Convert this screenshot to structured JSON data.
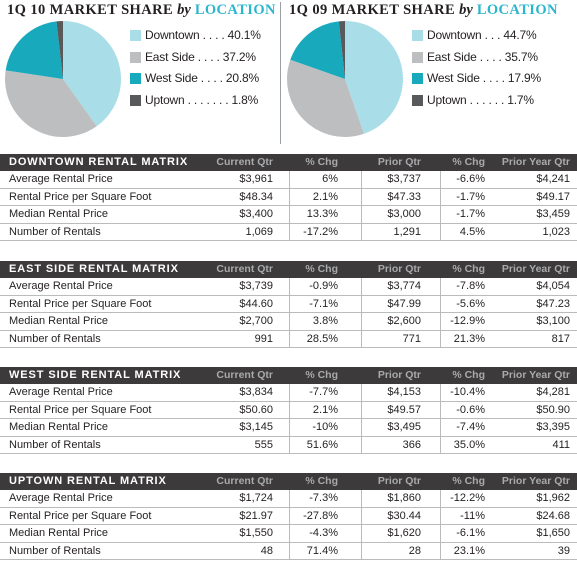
{
  "share_panels": [
    {
      "title_main": "1Q 10 MARKET SHARE",
      "title_by": "by",
      "title_loc": "LOCATION",
      "legend": [
        {
          "name": "Downtown",
          "dots": ". . . .",
          "value": "40.1%",
          "color": "#a9dee8"
        },
        {
          "name": "East Side",
          "dots": ". . . .",
          "value": "37.2%",
          "color": "#bdbec0"
        },
        {
          "name": "West Side",
          "dots": ". . . .",
          "value": "20.8%",
          "color": "#18a9bd"
        },
        {
          "name": "Uptown",
          "dots": ". . . . . . .",
          "value": "1.8%",
          "color": "#58595b"
        }
      ]
    },
    {
      "title_main": "1Q 09 MARKET SHARE",
      "title_by": "by",
      "title_loc": "LOCATION",
      "legend": [
        {
          "name": "Downtown",
          "dots": ". . .",
          "value": "44.7%",
          "color": "#a9dee8"
        },
        {
          "name": "East Side",
          "dots": ". . . .",
          "value": "35.7%",
          "color": "#bdbec0"
        },
        {
          "name": "West Side",
          "dots": ". . . .",
          "value": "17.9%",
          "color": "#18a9bd"
        },
        {
          "name": "Uptown",
          "dots": ". . . . . .",
          "value": "1.7%",
          "color": "#58595b"
        }
      ]
    }
  ],
  "chart_data": [
    {
      "type": "pie",
      "title": "1Q 10 MARKET SHARE by LOCATION",
      "categories": [
        "Downtown",
        "East Side",
        "West Side",
        "Uptown"
      ],
      "values": [
        40.1,
        37.2,
        20.8,
        1.8
      ]
    },
    {
      "type": "pie",
      "title": "1Q 09 MARKET SHARE by LOCATION",
      "categories": [
        "Downtown",
        "East Side",
        "West Side",
        "Uptown"
      ],
      "values": [
        44.7,
        35.7,
        17.9,
        1.7
      ]
    },
    {
      "type": "table",
      "columns": [
        "Current Qtr",
        "% Chg",
        "Prior Qtr",
        "% Chg",
        "Prior Year Qtr"
      ],
      "matrices": [
        {
          "title": "DOWNTOWN RENTAL MATRIX",
          "rows": [
            {
              "label": "Average Rental Price",
              "cells": [
                "$3,961",
                "6%",
                "$3,737",
                "-6.6%",
                "$4,241"
              ]
            },
            {
              "label": "Rental Price per Square Foot",
              "cells": [
                "$48.34",
                "2.1%",
                "$47.33",
                "-1.7%",
                "$49.17"
              ]
            },
            {
              "label": "Median Rental Price",
              "cells": [
                "$3,400",
                "13.3%",
                "$3,000",
                "-1.7%",
                "$3,459"
              ]
            },
            {
              "label": "Number of Rentals",
              "cells": [
                "1,069",
                "-17.2%",
                "1,291",
                "4.5%",
                "1,023"
              ]
            }
          ]
        },
        {
          "title": "EAST SIDE RENTAL MATRIX",
          "rows": [
            {
              "label": "Average Rental Price",
              "cells": [
                "$3,739",
                "-0.9%",
                "$3,774",
                "-7.8%",
                "$4,054"
              ]
            },
            {
              "label": "Rental Price per Square Foot",
              "cells": [
                "$44.60",
                "-7.1%",
                "$47.99",
                "-5.6%",
                "$47.23"
              ]
            },
            {
              "label": "Median Rental Price",
              "cells": [
                "$2,700",
                "3.8%",
                "$2,600",
                "-12.9%",
                "$3,100"
              ]
            },
            {
              "label": "Number of Rentals",
              "cells": [
                "991",
                "28.5%",
                "771",
                "21.3%",
                "817"
              ]
            }
          ]
        },
        {
          "title": "WEST SIDE RENTAL MATRIX",
          "rows": [
            {
              "label": "Average Rental Price",
              "cells": [
                "$3,834",
                "-7.7%",
                "$4,153",
                "-10.4%",
                "$4,281"
              ]
            },
            {
              "label": "Rental Price per Square Foot",
              "cells": [
                "$50.60",
                "2.1%",
                "$49.57",
                "-0.6%",
                "$50.90"
              ]
            },
            {
              "label": "Median Rental Price",
              "cells": [
                "$3,145",
                "-10%",
                "$3,495",
                "-7.4%",
                "$3,395"
              ]
            },
            {
              "label": "Number of Rentals",
              "cells": [
                "555",
                "51.6%",
                "366",
                "35.0%",
                "411"
              ]
            }
          ]
        },
        {
          "title": "UPTOWN RENTAL MATRIX",
          "rows": [
            {
              "label": "Average Rental Price",
              "cells": [
                "$1,724",
                "-7.3%",
                "$1,860",
                "-12.2%",
                "$1,962"
              ]
            },
            {
              "label": "Rental Price per Square Foot",
              "cells": [
                "$21.97",
                "-27.8%",
                "$30.44",
                "-11%",
                "$24.68"
              ]
            },
            {
              "label": "Median Rental Price",
              "cells": [
                "$1,550",
                "-4.3%",
                "$1,620",
                "-6.1%",
                "$1,650"
              ]
            },
            {
              "label": "Number of Rentals",
              "cells": [
                "48",
                "71.4%",
                "28",
                "23.1%",
                "39"
              ]
            }
          ]
        }
      ]
    }
  ]
}
